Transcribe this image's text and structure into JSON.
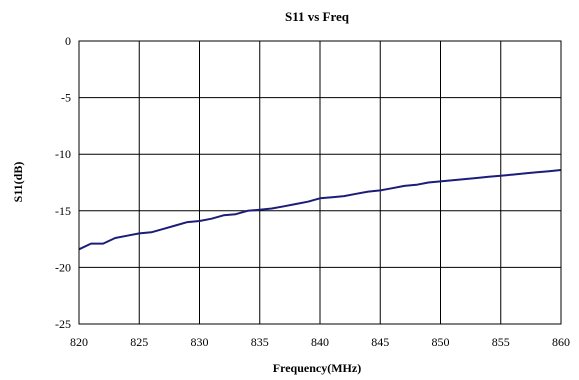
{
  "chart_data": {
    "type": "line",
    "title": "S11 vs Freq",
    "xlabel": "Frequency(MHz)",
    "ylabel": "S11(dB)",
    "xlim": [
      820,
      860
    ],
    "ylim": [
      -25,
      0
    ],
    "xticks": [
      "820",
      "825",
      "830",
      "835",
      "840",
      "845",
      "850",
      "855",
      "860"
    ],
    "yticks": [
      "0",
      "-5",
      "-10",
      "-15",
      "-20",
      "-25"
    ],
    "grid": true,
    "legend": "none",
    "series": [
      {
        "color": "#1c1c7a",
        "x": [
          820,
          821,
          822,
          823,
          824,
          825,
          826,
          827,
          828,
          829,
          830,
          831,
          832,
          833,
          834,
          835,
          836,
          837,
          838,
          839,
          840,
          841,
          842,
          843,
          844,
          845,
          846,
          847,
          848,
          849,
          850,
          851,
          852,
          853,
          854,
          855,
          856,
          857,
          858,
          859,
          860
        ],
        "y": [
          -18.4,
          -17.9,
          -17.9,
          -17.4,
          -17.2,
          -17.0,
          -16.9,
          -16.6,
          -16.3,
          -16.0,
          -15.9,
          -15.7,
          -15.4,
          -15.3,
          -15.0,
          -14.9,
          -14.8,
          -14.6,
          -14.4,
          -14.2,
          -13.9,
          -13.8,
          -13.7,
          -13.5,
          -13.3,
          -13.2,
          -13.0,
          -12.8,
          -12.7,
          -12.5,
          -12.4,
          -12.3,
          -12.2,
          -12.1,
          -12.0,
          -11.9,
          -11.8,
          -11.7,
          -11.6,
          -11.5,
          -11.4
        ]
      }
    ]
  }
}
